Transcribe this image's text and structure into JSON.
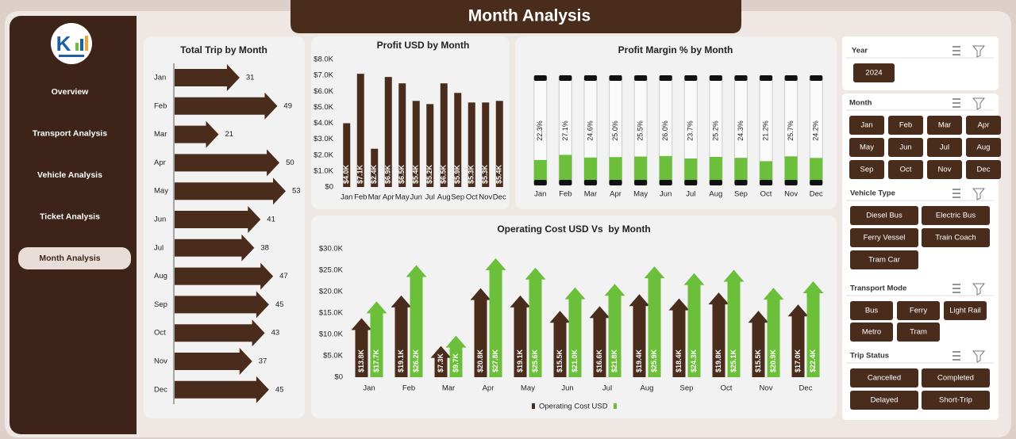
{
  "header": {
    "title": "Month Analysis"
  },
  "nav": [
    "Overview",
    "Transport Analysis",
    "Vehicle Analysis",
    "Ticket Analysis",
    "Month Analysis"
  ],
  "active_nav": 4,
  "chart_data": [
    {
      "type": "arrow",
      "orientation": "horizontal",
      "title": "Total Trip by Month",
      "categories": [
        "Jan",
        "Feb",
        "Mar",
        "Apr",
        "May",
        "Jun",
        "Jul",
        "Aug",
        "Sep",
        "Oct",
        "Nov",
        "Dec"
      ],
      "values": [
        31,
        49,
        21,
        50,
        53,
        41,
        38,
        47,
        45,
        43,
        37,
        45
      ],
      "color": "#4a2c1c"
    },
    {
      "type": "bar",
      "title": "Profit USD by Month",
      "categories": [
        "Jan",
        "Feb",
        "Mar",
        "Apr",
        "May",
        "Jun",
        "Jul",
        "Aug",
        "Sep",
        "Oct",
        "Nov",
        "Dec"
      ],
      "values": [
        4000,
        7100,
        2400,
        6900,
        6500,
        5400,
        5200,
        6500,
        5900,
        5300,
        5300,
        5400
      ],
      "value_labels": [
        "$4.0K",
        "$7.1K",
        "$2.4K",
        "$6.9K",
        "$6.5K",
        "$5.4K",
        "$5.2K",
        "$6.5K",
        "$5.9K",
        "$5.3K",
        "$5.3K",
        "$5.4K"
      ],
      "color": "#4a2c1c",
      "ylim": [
        0,
        8000
      ],
      "yticks": [
        {
          "value": 0,
          "label": "$0"
        },
        {
          "value": 1000,
          "label": "$1.0K"
        },
        {
          "value": 2000,
          "label": "$2.0K"
        },
        {
          "value": 3000,
          "label": "$3.0K"
        },
        {
          "value": 4000,
          "label": "$4.0K"
        },
        {
          "value": 5000,
          "label": "$5.0K"
        },
        {
          "value": 6000,
          "label": "$6.0K"
        },
        {
          "value": 7000,
          "label": "$7.0K"
        },
        {
          "value": 8000,
          "label": "$8.0K"
        }
      ]
    },
    {
      "type": "gauge",
      "title": "Profit Margin % by Month",
      "categories": [
        "Jan",
        "Feb",
        "Mar",
        "Apr",
        "May",
        "Jun",
        "Jul",
        "Aug",
        "Sep",
        "Oct",
        "Nov",
        "Dec"
      ],
      "values": [
        22.3,
        27.1,
        24.6,
        25.0,
        25.5,
        26.0,
        23.7,
        25.2,
        24.3,
        21.2,
        25.7,
        24.2
      ],
      "value_labels": [
        "22.3%",
        "27.1%",
        "24.6%",
        "25.0%",
        "25.5%",
        "26.0%",
        "23.7%",
        "25.2%",
        "24.3%",
        "21.2%",
        "25.7%",
        "24.2%"
      ],
      "color": "#6cbf3a",
      "ylim": [
        0,
        100
      ]
    },
    {
      "type": "arrow",
      "orientation": "vertical",
      "title": "Operating Cost USD Vs  by Month",
      "categories": [
        "Jan",
        "Feb",
        "Mar",
        "Apr",
        "May",
        "Jun",
        "Jul",
        "Aug",
        "Sep",
        "Oct",
        "Nov",
        "Dec"
      ],
      "series": [
        {
          "name": "Operating Cost USD",
          "color": "#4a2c1c",
          "values": [
            13800,
            19100,
            7300,
            20800,
            19100,
            15500,
            16600,
            19400,
            18400,
            19800,
            15500,
            17000
          ],
          "value_labels": [
            "$13.8K",
            "$19.1K",
            "$7.3K",
            "$20.8K",
            "$19.1K",
            "$15.5K",
            "$16.6K",
            "$19.4K",
            "$18.4K",
            "$19.8K",
            "$15.5K",
            "$17.0K"
          ]
        },
        {
          "color": "#6cbf3a",
          "values": [
            17700,
            26200,
            9700,
            27800,
            25600,
            21000,
            21800,
            25900,
            24300,
            25100,
            20900,
            22400
          ],
          "value_labels": [
            "$17.7K",
            "$26.2K",
            "$9.7K",
            "$27.8K",
            "$25.6K",
            "$21.0K",
            "$21.8K",
            "$25.9K",
            "$24.3K",
            "$25.1K",
            "$20.9K",
            "$22.4K"
          ]
        }
      ],
      "ylim": [
        0,
        30000
      ],
      "yticks": [
        {
          "value": 0,
          "label": "$0"
        },
        {
          "value": 5000,
          "label": "$5.0K"
        },
        {
          "value": 10000,
          "label": "$10.0K"
        },
        {
          "value": 15000,
          "label": "$15.0K"
        },
        {
          "value": 20000,
          "label": "$20.0K"
        },
        {
          "value": 25000,
          "label": "$25.0K"
        },
        {
          "value": 30000,
          "label": "$30.0K"
        }
      ]
    }
  ],
  "slicers": [
    {
      "title": "Year",
      "items": [
        "2024"
      ]
    },
    {
      "title": "Month",
      "items": [
        "Jan",
        "Feb",
        "Mar",
        "Apr",
        "May",
        "Jun",
        "Jul",
        "Aug",
        "Sep",
        "Oct",
        "Nov",
        "Dec"
      ]
    },
    {
      "title": "Vehicle Type",
      "items": [
        "Diesel Bus",
        "Electric Bus",
        "Ferry Vessel",
        "Train Coach",
        "Tram Car"
      ]
    },
    {
      "title": "Transport Mode",
      "items": [
        "Bus",
        "Ferry",
        "Light Rail",
        "Metro",
        "Tram"
      ]
    },
    {
      "title": "Trip Status",
      "items": [
        "Cancelled",
        "Completed",
        "Delayed",
        "Short-Trip"
      ]
    }
  ]
}
